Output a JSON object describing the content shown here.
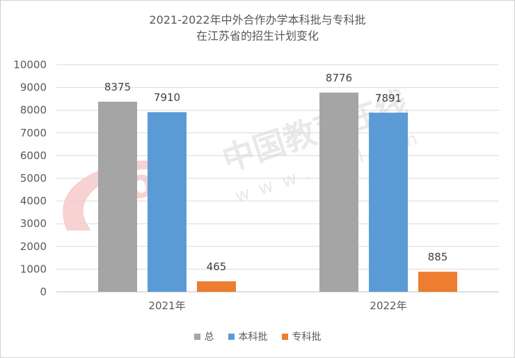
{
  "chart_data": {
    "type": "bar",
    "title_line1": "2021-2022年中外合作办学本科批与专科批",
    "title_line2": "在江苏省的招生计划变化",
    "categories": [
      "2021年",
      "2022年"
    ],
    "series": [
      {
        "name": "总",
        "color": "#A5A5A5",
        "values": [
          8375,
          8776
        ]
      },
      {
        "name": "本科批",
        "color": "#5B9BD5",
        "values": [
          7910,
          7891
        ]
      },
      {
        "name": "专科批",
        "color": "#ED7D31",
        "values": [
          465,
          885
        ]
      }
    ],
    "ylim": [
      0,
      10000
    ],
    "yticks": [
      0,
      1000,
      2000,
      3000,
      4000,
      5000,
      6000,
      7000,
      8000,
      9000,
      10000
    ],
    "grid": true,
    "legend_position": "bottom",
    "watermark_cn": "中国教育在线",
    "watermark_url": "www.eol.cn",
    "watermark_logo": "eol"
  }
}
